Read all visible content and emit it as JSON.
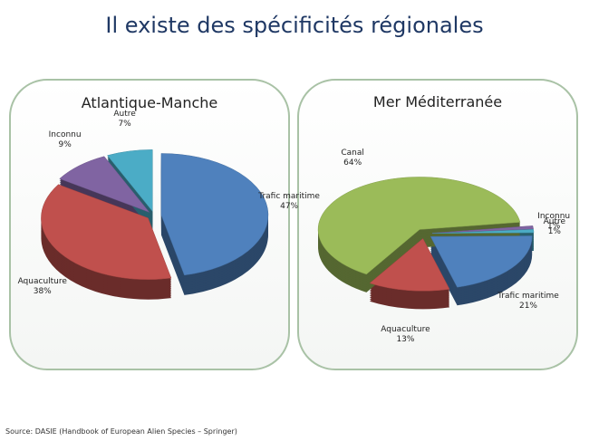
{
  "title": "Il existe des spécificités régionales",
  "source": "Source: DASIE (Handbook of European Alien Species – Springer)",
  "chart_data": [
    {
      "type": "pie",
      "title": "Atlantique-Manche",
      "categories": [
        "Trafic maritime",
        "Aquaculture",
        "Inconnu",
        "Autre"
      ],
      "values": [
        47,
        38,
        9,
        7
      ],
      "value_labels": [
        "47%",
        "38%",
        "9%",
        "7%"
      ],
      "colors": [
        "#4f81bd",
        "#c0504d",
        "#8064a2",
        "#4bacc6"
      ]
    },
    {
      "type": "pie",
      "title": "Mer Méditerranée",
      "categories": [
        "Inconnu",
        "Autre",
        "Trafic maritime",
        "Aquaculture",
        "Canal"
      ],
      "values": [
        1,
        1,
        21,
        13,
        64
      ],
      "value_labels": [
        "1%",
        "1%",
        "21%",
        "13%",
        "64%"
      ],
      "colors": [
        "#8064a2",
        "#4bacc6",
        "#4f81bd",
        "#c0504d",
        "#9bbb59"
      ]
    }
  ]
}
